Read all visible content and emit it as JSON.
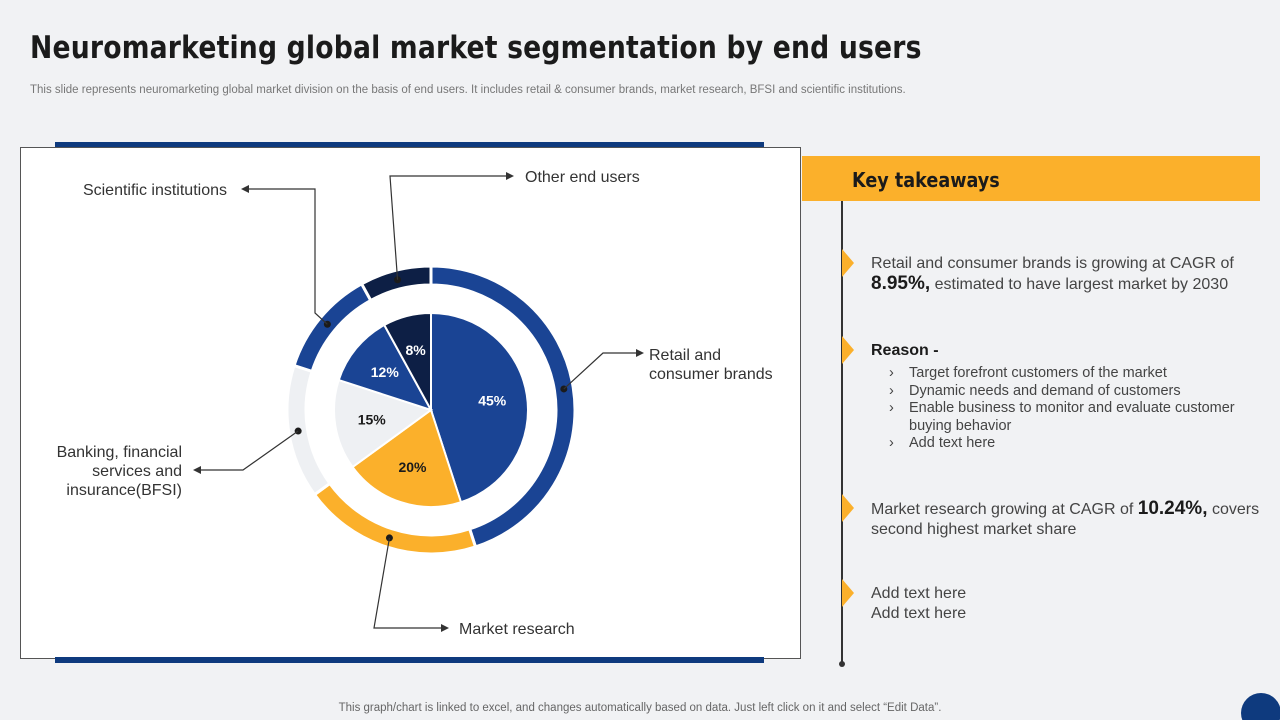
{
  "page": {
    "title": "Neuromarketing global market segmentation by end users",
    "subtitle": "This slide represents neuromarketing global market division on the basis of end users. It includes retail & consumer brands, market research, BFSI and scientific institutions.",
    "footer": "This graph/chart is linked to excel,  and changes automatically based on data. Just left click on it and select “Edit Data”."
  },
  "colors": {
    "navy": "#0e3a7e",
    "blue": "#1a4494",
    "dark_navy": "#0d1f45",
    "yellow": "#fbb02b",
    "light_gray": "#eef0f3"
  },
  "chart_data": {
    "type": "pie",
    "style": "donut-with-inner-pie",
    "categories": [
      "Retail and consumer brands",
      "Market research",
      "Banking, financial services and insurance(BFSI)",
      "Scientific institutions",
      "Other end users"
    ],
    "values": [
      45,
      20,
      15,
      12,
      8
    ],
    "value_labels": [
      "45%",
      "20%",
      "15%",
      "12%",
      "8%"
    ],
    "colors": [
      "#1a4494",
      "#fbb02b",
      "#eef0f3",
      "#1a4494",
      "#0d1f45"
    ],
    "callout_labels": {
      "retail": [
        "Retail and",
        "consumer brands"
      ],
      "market": [
        "Market research"
      ],
      "bfsi": [
        "Banking, financial",
        "services and",
        "insurance(BFSI)"
      ],
      "scientific": [
        "Scientific institutions"
      ],
      "other": [
        "Other end users"
      ]
    }
  },
  "takeaways": {
    "title": "Key takeaways",
    "item1": {
      "line1": "Retail and consumer brands is growing at CAGR of",
      "highlight": "8.95%,",
      "rest": " estimated to have largest market by 2030"
    },
    "reason": {
      "head": "Reason -",
      "bullets": [
        "Target forefront customers of the market",
        "Dynamic needs and demand of customers",
        "Enable business to monitor and evaluate customer buying behavior",
        "Add text here"
      ]
    },
    "item3": {
      "pre": "Market research growing at CAGR of ",
      "highlight": "10.24%,",
      "rest": " covers second highest market share"
    },
    "item4": {
      "line1": "Add text here",
      "line2": "Add text here"
    }
  }
}
